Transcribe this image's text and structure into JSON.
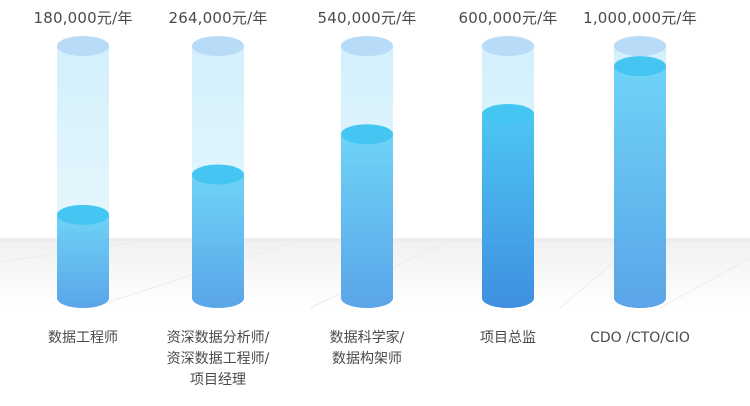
{
  "chart_data": {
    "type": "bar",
    "categories": [
      [
        "数据工程师"
      ],
      [
        "资深数据分析师/",
        "资深数据工程师/",
        "项目经理"
      ],
      [
        "数据科学家/",
        "数据构架师"
      ],
      [
        "项目总监"
      ],
      [
        "CDO /CTO/CIO"
      ]
    ],
    "value_labels": [
      "180,000元/年",
      "264,000元/年",
      "540,000元/年",
      "600,000元/年",
      "1,000,000元/年"
    ],
    "values": [
      180000,
      264000,
      540000,
      600000,
      1000000
    ],
    "fill_fraction": [
      0.33,
      0.49,
      0.65,
      0.73,
      0.92
    ],
    "title": "",
    "xlabel": "",
    "ylabel": "",
    "grid": false,
    "colors": {
      "tube": "#cdeefb",
      "top_cap": "#b8dcf8",
      "liquid_top": "#6fd3f7",
      "liquid_bottom": "#5aa5e8",
      "liquid_cap": "#45c6f2",
      "text": "#4a4a4a"
    }
  }
}
